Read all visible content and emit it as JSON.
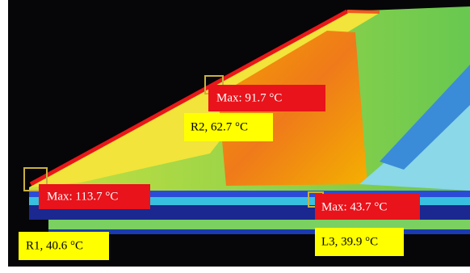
{
  "annotations": [
    {
      "max": "Max: 91.7 °C",
      "region": "R2, 62.7 °C"
    },
    {
      "max": "Max: 113.7 °C",
      "region": "R1, 40.6 °C"
    },
    {
      "max": "Max: 43.7 °C",
      "region": "L3, 39.9 °C"
    }
  ]
}
